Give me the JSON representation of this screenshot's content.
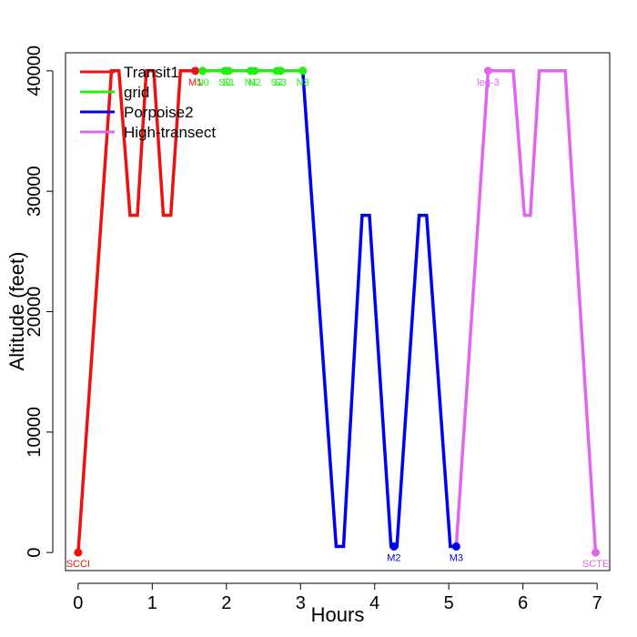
{
  "chart_data": {
    "type": "line",
    "title": "",
    "xlabel": "Hours",
    "ylabel": "Altitude (feet)",
    "xlim": [
      -0.17,
      7.17
    ],
    "ylim": [
      -1500,
      41500
    ],
    "xticks": [
      0,
      1,
      2,
      3,
      4,
      5,
      6,
      7
    ],
    "yticks": [
      0,
      10000,
      20000,
      30000,
      40000
    ],
    "xtick_labels": [
      "0",
      "1",
      "2",
      "3",
      "4",
      "5",
      "6",
      "7"
    ],
    "ytick_labels": [
      "0",
      "10000",
      "20000",
      "30000",
      "40000"
    ],
    "legend_position": "top-left",
    "series": [
      {
        "name": "Transit1",
        "color": "#ee1111",
        "x": [
          0,
          0.45,
          0.55,
          0.7,
          0.8,
          0.92,
          1.02,
          1.15,
          1.25,
          1.38,
          1.58
        ],
        "y": [
          0,
          40000,
          40000,
          28000,
          28000,
          40000,
          40000,
          28000,
          28000,
          40000,
          40000
        ]
      },
      {
        "name": "grid",
        "color": "#22ee11",
        "x": [
          1.58,
          1.68,
          1.98,
          2.03,
          2.33,
          2.38,
          2.68,
          2.73,
          3.03
        ],
        "y": [
          40000,
          40000,
          40000,
          40000,
          40000,
          40000,
          40000,
          40000,
          40000
        ]
      },
      {
        "name": "Porpoise2",
        "color": "#0000ee",
        "x": [
          3.03,
          3.48,
          3.58,
          3.83,
          3.93,
          4.22,
          4.3,
          4.6,
          4.7,
          5.02,
          5.1
        ],
        "y": [
          40000,
          500,
          500,
          28000,
          28000,
          500,
          500,
          28000,
          28000,
          500,
          500
        ]
      },
      {
        "name": "High-transect",
        "color": "#e066ee",
        "x": [
          5.1,
          5.53,
          5.87,
          6.02,
          6.1,
          6.22,
          6.57,
          6.98
        ],
        "y": [
          500,
          40000,
          40000,
          28000,
          28000,
          40000,
          40000,
          0
        ]
      }
    ],
    "points": [
      {
        "label": "SCCI",
        "x": 0,
        "y": 0,
        "color": "#ee1111",
        "label_pos": "below"
      },
      {
        "label": "M1",
        "x": 1.58,
        "y": 40000,
        "color": "#ee1111",
        "label_pos": "below"
      },
      {
        "label": "N0",
        "x": 1.68,
        "y": 40000,
        "color": "#22ee11",
        "label_pos": "below"
      },
      {
        "label": "S0",
        "x": 1.98,
        "y": 40000,
        "color": "#22ee11",
        "label_pos": "below"
      },
      {
        "label": "S1",
        "x": 2.03,
        "y": 40000,
        "color": "#22ee11",
        "label_pos": "below"
      },
      {
        "label": "N1",
        "x": 2.33,
        "y": 40000,
        "color": "#22ee11",
        "label_pos": "below"
      },
      {
        "label": "N2",
        "x": 2.38,
        "y": 40000,
        "color": "#22ee11",
        "label_pos": "below"
      },
      {
        "label": "S2",
        "x": 2.68,
        "y": 40000,
        "color": "#22ee11",
        "label_pos": "below"
      },
      {
        "label": "S3",
        "x": 2.73,
        "y": 40000,
        "color": "#22ee11",
        "label_pos": "below"
      },
      {
        "label": "N3",
        "x": 3.03,
        "y": 40000,
        "color": "#22ee11",
        "label_pos": "below"
      },
      {
        "label": "M2",
        "x": 4.26,
        "y": 500,
        "color": "#0000ee",
        "label_pos": "below"
      },
      {
        "label": "M3",
        "x": 5.1,
        "y": 500,
        "color": "#0000ee",
        "label_pos": "below"
      },
      {
        "label": "leg-3",
        "x": 5.53,
        "y": 40000,
        "color": "#e066ee",
        "label_pos": "below"
      },
      {
        "label": "SCTE",
        "x": 6.98,
        "y": 0,
        "color": "#e066ee",
        "label_pos": "below"
      }
    ]
  }
}
